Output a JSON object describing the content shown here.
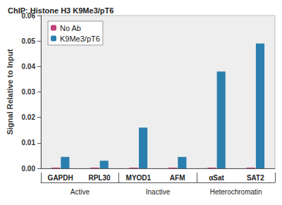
{
  "chart_data": {
    "type": "bar",
    "title": "ChIP: Histone H3 K9Me3/pT6",
    "y_label": "Signal Relative to Input",
    "categories": [
      "GAPDH",
      "RPL30",
      "MYOD1",
      "AFM",
      "αSat",
      "SAT2"
    ],
    "series": [
      {
        "name": "No Ab",
        "color": "#c2407a",
        "values": [
          0.0003,
          0.0003,
          0.0003,
          0.0003,
          0.0003,
          0.0003
        ]
      },
      {
        "name": "K9Me3/pT6",
        "color": "#2b7fae",
        "values": [
          0.0045,
          0.003,
          0.016,
          0.0045,
          0.038,
          0.049
        ]
      }
    ],
    "groups": [
      {
        "label": "Active",
        "categories": [
          "GAPDH",
          "RPL30"
        ]
      },
      {
        "label": "Inactive",
        "categories": [
          "MYOD1",
          "AFM"
        ]
      },
      {
        "label": "Heterochromatin",
        "categories": [
          "αSat",
          "SAT2"
        ]
      }
    ],
    "ylim": [
      0,
      0.06
    ],
    "yticks": [
      {
        "value": 0,
        "label": "0.00"
      },
      0.01,
      0.02,
      0.03,
      0.04,
      0.05,
      0.06
    ],
    "legend": "upper left",
    "grid": false
  }
}
